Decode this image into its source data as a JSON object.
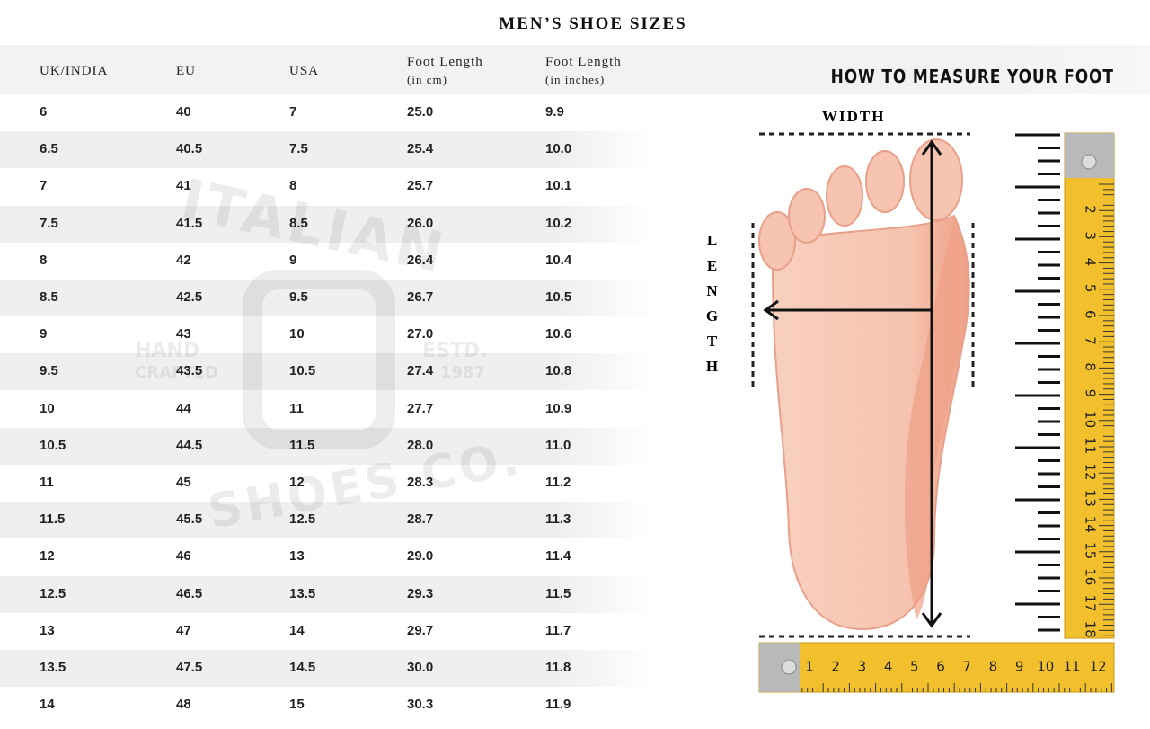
{
  "title": "MEN’S SHOE SIZES",
  "table": {
    "headers": [
      {
        "title": "UK/INDIA"
      },
      {
        "title": "EU"
      },
      {
        "title": "USA"
      },
      {
        "title": "Foot Length",
        "sub": "(in cm)"
      },
      {
        "title": "Foot Length",
        "sub": "(in inches)"
      }
    ],
    "rows": [
      [
        "6",
        "40",
        "7",
        "25.0",
        "9.9"
      ],
      [
        "6.5",
        "40.5",
        "7.5",
        "25.4",
        "10.0"
      ],
      [
        "7",
        "41",
        "8",
        "25.7",
        "10.1"
      ],
      [
        "7.5",
        "41.5",
        "8.5",
        "26.0",
        "10.2"
      ],
      [
        "8",
        "42",
        "9",
        "26.4",
        "10.4"
      ],
      [
        "8.5",
        "42.5",
        "9.5",
        "26.7",
        "10.5"
      ],
      [
        "9",
        "43",
        "10",
        "27.0",
        "10.6"
      ],
      [
        "9.5",
        "43.5",
        "10.5",
        "27.4",
        "10.8"
      ],
      [
        "10",
        "44",
        "11",
        "27.7",
        "10.9"
      ],
      [
        "10.5",
        "44.5",
        "11.5",
        "28.0",
        "11.0"
      ],
      [
        "11",
        "45",
        "12",
        "28.3",
        "11.2"
      ],
      [
        "11.5",
        "45.5",
        "12.5",
        "28.7",
        "11.3"
      ],
      [
        "12",
        "46",
        "13",
        "29.0",
        "11.4"
      ],
      [
        "12.5",
        "46.5",
        "13.5",
        "29.3",
        "11.5"
      ],
      [
        "13",
        "47",
        "14",
        "29.7",
        "11.7"
      ],
      [
        "13.5",
        "47.5",
        "14.5",
        "30.0",
        "11.8"
      ],
      [
        "14",
        "48",
        "15",
        "30.3",
        "11.9"
      ]
    ]
  },
  "watermark": {
    "top": "ITALIAN",
    "left": [
      "HAND",
      "CRAFTED"
    ],
    "right": [
      "ESTD.",
      "1987"
    ],
    "bottom": "SHOES CO."
  },
  "guide": {
    "title": "HOW TO MEASURE YOUR FOOT",
    "width_label": "WIDTH",
    "length_label": "LENGTH",
    "vertical_ruler": [
      "2",
      "3",
      "4",
      "5",
      "6",
      "7",
      "8",
      "9",
      "10",
      "11",
      "12",
      "13",
      "14",
      "15",
      "16",
      "17",
      "18"
    ],
    "horizontal_ruler": [
      "1",
      "2",
      "3",
      "4",
      "5",
      "6",
      "7",
      "8",
      "9",
      "10",
      "11",
      "12"
    ]
  }
}
